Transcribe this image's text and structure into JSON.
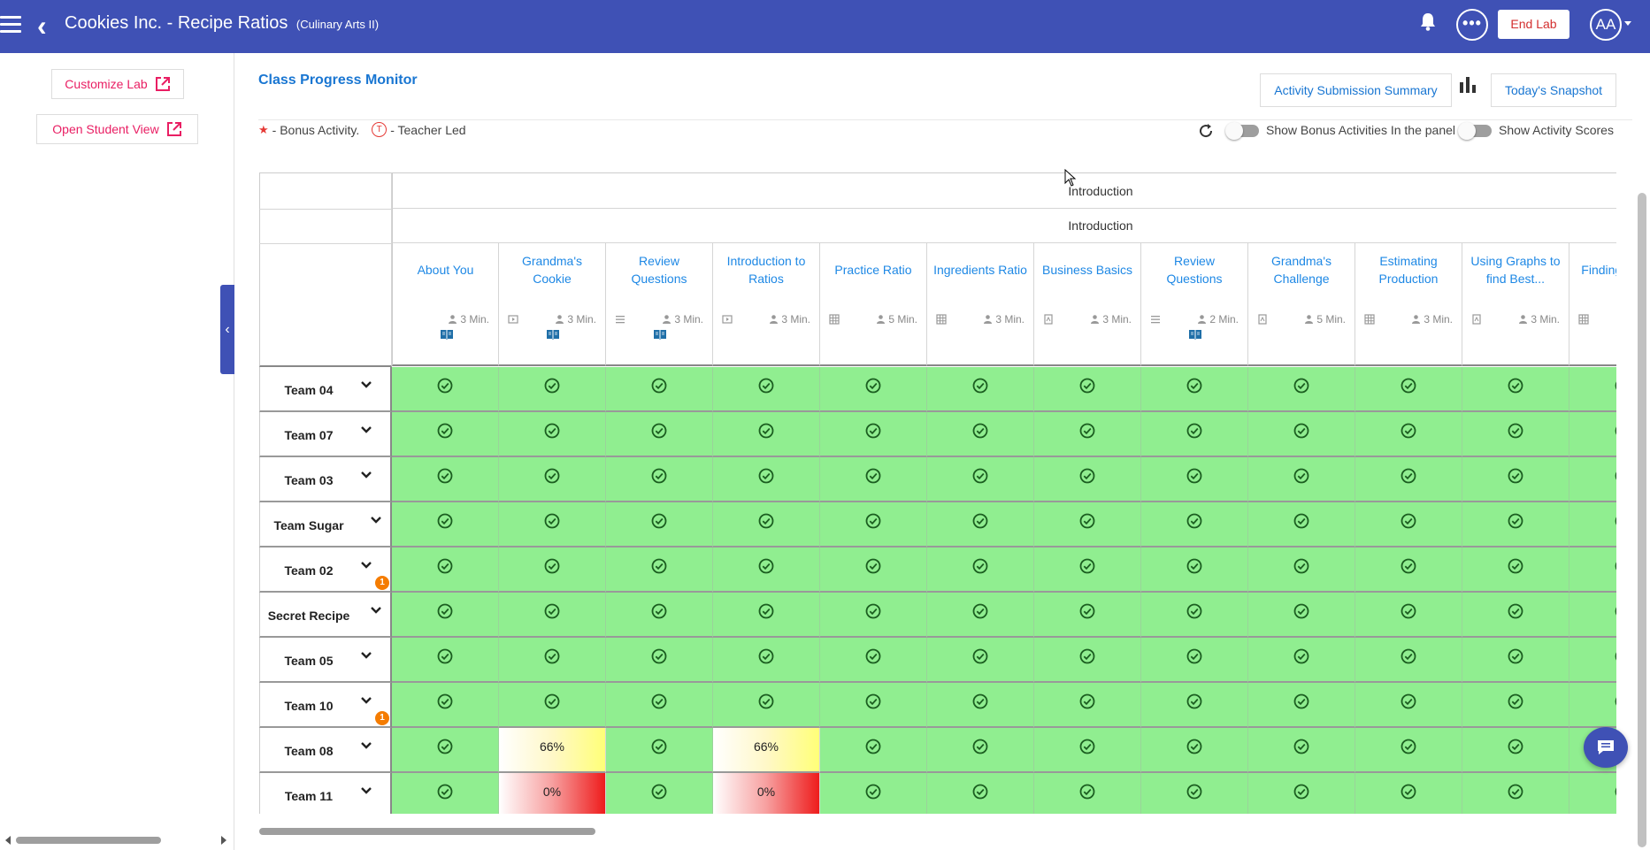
{
  "header": {
    "title": "Cookies Inc. - Recipe Ratios",
    "subtitle": "(Culinary Arts II)",
    "more_label": "•••",
    "end_lab_label": "End Lab",
    "avatar_initials": "AA",
    "bar_color": "#3f51b5"
  },
  "sidebar": {
    "customize_lab_label": "Customize Lab",
    "open_student_view_label": "Open Student View",
    "collapse_icon": "‹"
  },
  "main": {
    "page_title": "Class Progress Monitor",
    "activity_submission_summary_label": "Activity Submission Summary",
    "todays_snapshot_label": "Today's Snapshot",
    "legend_bonus": "- Bonus Activity.",
    "legend_teacher_marker": "T",
    "legend_teacher": "- Teacher Led",
    "show_bonus_label": "Show Bonus Activities In the panel",
    "show_scores_label": "Show Activity Scores"
  },
  "grid": {
    "unit": "Introduction",
    "lesson": "Introduction",
    "activities": [
      {
        "name": "About You",
        "duration": "3 Min.",
        "type_icon": "none",
        "book": true
      },
      {
        "name": "Grandma's Cookie",
        "duration": "3 Min.",
        "type_icon": "video-icon",
        "book": true
      },
      {
        "name": "Review Questions",
        "duration": "3 Min.",
        "type_icon": "list-icon",
        "book": true
      },
      {
        "name": "Introduction to Ratios",
        "duration": "3 Min.",
        "type_icon": "video-icon",
        "book": false
      },
      {
        "name": "Practice Ratio",
        "duration": "5 Min.",
        "type_icon": "table-icon",
        "book": false
      },
      {
        "name": "Ingredients Ratio",
        "duration": "3 Min.",
        "type_icon": "table-icon",
        "book": false
      },
      {
        "name": "Business Basics",
        "duration": "3 Min.",
        "type_icon": "document-icon",
        "book": false
      },
      {
        "name": "Review Questions",
        "duration": "2 Min.",
        "type_icon": "list-icon",
        "book": true
      },
      {
        "name": "Grandma's Challenge",
        "duration": "5 Min.",
        "type_icon": "document-icon",
        "book": false
      },
      {
        "name": "Estimating Production",
        "duration": "3 Min.",
        "type_icon": "table-icon",
        "book": false
      },
      {
        "name": "Using Graphs to find Best...",
        "duration": "3 Min.",
        "type_icon": "document-icon",
        "book": false
      },
      {
        "name": "Finding price &",
        "duration": "",
        "type_icon": "table-icon",
        "book": false
      }
    ],
    "teams": [
      {
        "name": "Team 04",
        "badge": ""
      },
      {
        "name": "Team 07",
        "badge": ""
      },
      {
        "name": "Team 03",
        "badge": ""
      },
      {
        "name": "Team Sugar",
        "badge": ""
      },
      {
        "name": "Team 02",
        "badge": "1"
      },
      {
        "name": "Secret Recipe",
        "badge": ""
      },
      {
        "name": "Team 05",
        "badge": ""
      },
      {
        "name": "Team 10",
        "badge": "1"
      },
      {
        "name": "Team 08",
        "badge": ""
      },
      {
        "name": "Team 11",
        "badge": ""
      }
    ],
    "status": [
      [
        "done",
        "done",
        "done",
        "done",
        "done",
        "done",
        "done",
        "done",
        "done",
        "done",
        "done",
        "done"
      ],
      [
        "done",
        "done",
        "done",
        "done",
        "done",
        "done",
        "done",
        "done",
        "done",
        "done",
        "done",
        "done"
      ],
      [
        "done",
        "done",
        "done",
        "done",
        "done",
        "done",
        "done",
        "done",
        "done",
        "done",
        "done",
        "done"
      ],
      [
        "done",
        "done",
        "done",
        "done",
        "done",
        "done",
        "done",
        "done",
        "done",
        "done",
        "done",
        "done"
      ],
      [
        "done",
        "done",
        "done",
        "done",
        "done",
        "done",
        "done",
        "done",
        "done",
        "done",
        "done",
        "done"
      ],
      [
        "done",
        "done",
        "done",
        "done",
        "done",
        "done",
        "done",
        "done",
        "done",
        "done",
        "done",
        "done"
      ],
      [
        "done",
        "done",
        "done",
        "done",
        "done",
        "done",
        "done",
        "done",
        "done",
        "done",
        "done",
        "done"
      ],
      [
        "done",
        "done",
        "done",
        "done",
        "done",
        "done",
        "done",
        "done",
        "done",
        "done",
        "done",
        "done"
      ],
      [
        "done",
        "66%",
        "done",
        "66%",
        "done",
        "done",
        "done",
        "done",
        "done",
        "done",
        "done",
        "done"
      ],
      [
        "done",
        "0%",
        "done",
        "0%",
        "done",
        "done",
        "done",
        "done",
        "done",
        "done",
        "done",
        "done"
      ]
    ],
    "colors": {
      "complete": "#90ee90",
      "partial": "#ffff78",
      "incomplete": "#ee1c1c",
      "link": "#1e88e5"
    }
  }
}
